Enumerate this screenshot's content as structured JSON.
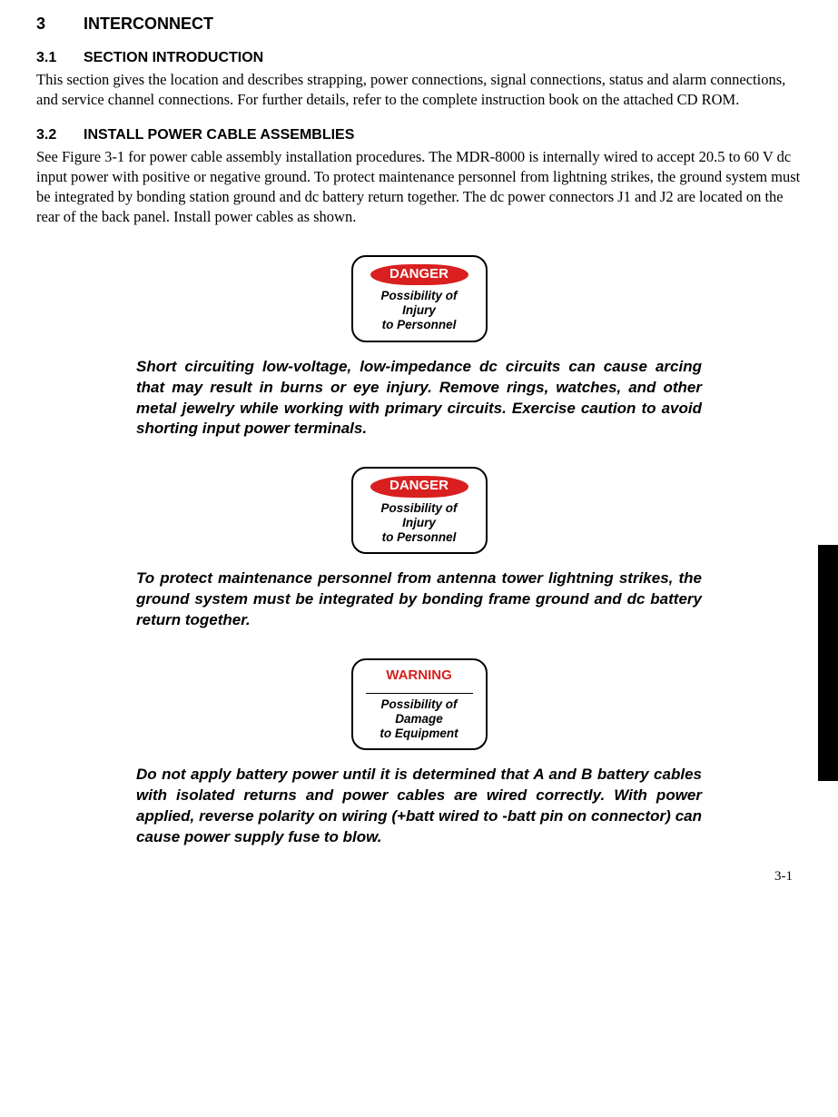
{
  "section": {
    "num": "3",
    "title": "INTERCONNECT"
  },
  "sub1": {
    "num": "3.1",
    "title": "SECTION INTRODUCTION",
    "body": "This section gives the location and describes strapping, power connections, signal connections, status and alarm connections, and service channel connections. For further details, refer to the complete instruction book on the attached CD ROM."
  },
  "sub2": {
    "num": "3.2",
    "title": "INSTALL POWER CABLE ASSEMBLIES",
    "body": "See Figure 3-1 for power cable assembly installation procedures. The MDR-8000 is internally wired to accept 20.5 to 60 V dc input power with positive or negative ground. To protect maintenance personnel from lightning strikes, the ground system must be integrated by bonding station ground and dc battery return together. The dc power connectors J1 and J2 are located on the rear of the back panel. Install power cables as shown."
  },
  "callouts": {
    "danger1": {
      "label": "DANGER",
      "sub1": "Possibility of",
      "sub2": "Injury",
      "sub3": "to Personnel",
      "text": "Short circuiting low-voltage, low-impedance dc circuits can cause arcing that may result in burns or eye injury. Remove rings, watches, and other metal jewelry while working with primary circuits. Exercise caution to avoid shorting input power terminals."
    },
    "danger2": {
      "label": "DANGER",
      "sub1": "Possibility of",
      "sub2": "Injury",
      "sub3": "to Personnel",
      "text": "To protect maintenance personnel from antenna tower lightning strikes, the ground system must be integrated by bonding frame ground and dc battery return together."
    },
    "warning": {
      "label": "WARNING",
      "sub1": "Possibility of",
      "sub2": "Damage",
      "sub3": "to Equipment",
      "text": "Do not apply battery power until it is determined that A and B battery cables with isolated returns and power cables are wired correctly. With power applied, reverse polarity on wiring (+batt wired to -batt pin on connector) can cause power supply fuse to blow."
    }
  },
  "page_num": "3-1",
  "colors": {
    "danger_bg": "#d91f1f",
    "danger_fg": "#ffffff",
    "warning_fg": "#d91f1f"
  }
}
